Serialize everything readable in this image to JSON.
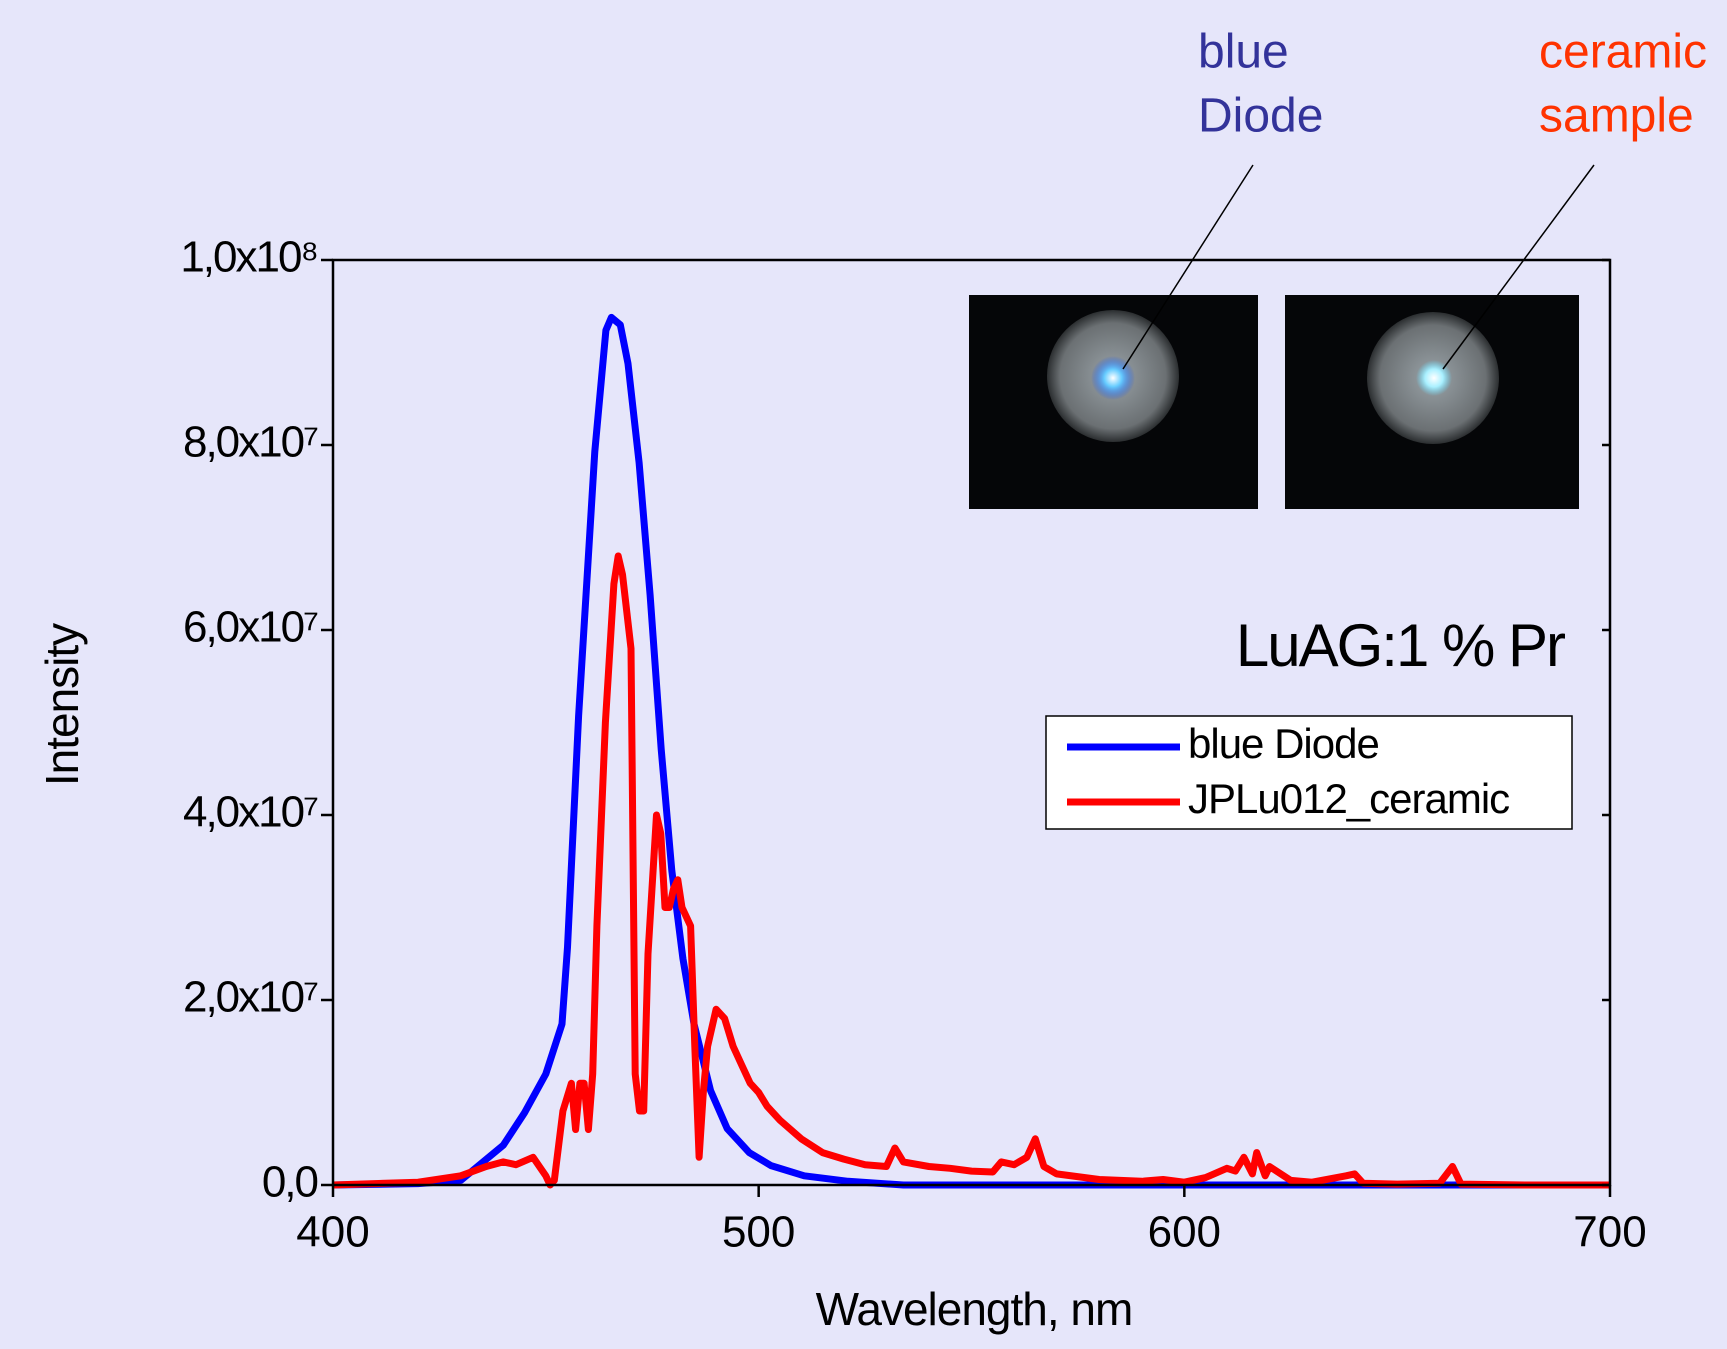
{
  "chart_data": {
    "type": "line",
    "annotations": {
      "diode": [
        "blue",
        "Diode"
      ],
      "sample": [
        "ceramic",
        "sample"
      ],
      "material": "LuAG:1 % Pr"
    },
    "xlabel": "Wavelength, nm",
    "ylabel": "Intensity",
    "xlim": [
      400,
      700
    ],
    "xticks": [
      400,
      500,
      600,
      700
    ],
    "ylim": [
      0,
      100000000.0
    ],
    "yticks": [
      {
        "value": 0,
        "label": "0,0"
      },
      {
        "value": 20000000.0,
        "label": "2,0x10⁷"
      },
      {
        "value": 40000000.0,
        "label": "4,0x10⁷"
      },
      {
        "value": 60000000.0,
        "label": "6,0x10⁷"
      },
      {
        "value": 80000000.0,
        "label": "8,0x10⁷"
      },
      {
        "value": 100000000.0,
        "label": "1,0x10⁸"
      }
    ],
    "series": [
      {
        "name": "blue Diode",
        "color": "#0000ff",
        "x": [
          400,
          420,
          430,
          440,
          445,
          450,
          453.8,
          455.1,
          457.7,
          461.5,
          464.1,
          465.4,
          467.5,
          469.3,
          471.9,
          474.5,
          477.1,
          479.6,
          482.2,
          484.8,
          488.7,
          492.6,
          497.8,
          502.9,
          510.7,
          521,
          534,
          700
        ],
        "values": [
          0,
          150000.0,
          500000.0,
          4300000.0,
          7800000.0,
          12000000.0,
          17400000.0,
          25700000.0,
          50700000.0,
          79300000.0,
          92400000.0,
          93800000.0,
          93000000.0,
          88800000.0,
          78100000.0,
          63800000.0,
          47100000.0,
          34000000.0,
          24500000.0,
          17400000.0,
          10200000.0,
          6100000.0,
          3500000.0,
          2100000.0,
          1000000.0,
          400000.0,
          0,
          0
        ]
      },
      {
        "name": "JPLu012_ceramic",
        "color": "#ff0000",
        "x": [
          400,
          420,
          430,
          436,
          440,
          443,
          447,
          450,
          451,
          452,
          454,
          456,
          457,
          458,
          459,
          460,
          461,
          462,
          464,
          466,
          467,
          468,
          470,
          471,
          472,
          473,
          474,
          476,
          477,
          478,
          479,
          480,
          481,
          482,
          484,
          485,
          486,
          487,
          488,
          490,
          492,
          494,
          496,
          498,
          500,
          502,
          505,
          510,
          515,
          520,
          525,
          530,
          532,
          534,
          540,
          545,
          550,
          555,
          557,
          560,
          563,
          565,
          567,
          570,
          580,
          590,
          595,
          600,
          605,
          610,
          612,
          614,
          616,
          617,
          619,
          620,
          625,
          630,
          638,
          640,
          642,
          650,
          660,
          663,
          665,
          680,
          700
        ],
        "values": [
          0,
          300000.0,
          1000000.0,
          2000000.0,
          2500000.0,
          2200000.0,
          3000000.0,
          1000000.0,
          0,
          500000.0,
          8000000.0,
          11000000.0,
          6000000.0,
          11000000.0,
          11000000.0,
          6000000.0,
          12000000.0,
          28000000.0,
          50000000.0,
          65000000.0,
          68000000.0,
          66000000.0,
          58000000.0,
          12000000.0,
          8000000.0,
          8000000.0,
          25000000.0,
          40000000.0,
          38000000.0,
          30000000.0,
          30000000.0,
          32000000.0,
          33000000.0,
          30000000.0,
          28000000.0,
          15000000.0,
          3000000.0,
          10000000.0,
          15000000.0,
          19000000.0,
          18000000.0,
          15000000.0,
          13000000.0,
          11000000.0,
          10000000.0,
          8500000.0,
          7000000.0,
          5000000.0,
          3500000.0,
          2800000.0,
          2200000.0,
          2000000.0,
          4000000.0,
          2500000.0,
          2000000.0,
          1800000.0,
          1500000.0,
          1400000.0,
          2500000.0,
          2200000.0,
          3000000.0,
          5000000.0,
          2000000.0,
          1200000.0,
          600000.0,
          400000.0,
          600000.0,
          300000.0,
          800000.0,
          1800000.0,
          1500000.0,
          3000000.0,
          1200000.0,
          3500000.0,
          1000000.0,
          2000000.0,
          500000.0,
          300000.0,
          1000000.0,
          1200000.0,
          200000.0,
          100000.0,
          200000.0,
          2000000.0,
          100000.0,
          0,
          0
        ]
      }
    ]
  }
}
